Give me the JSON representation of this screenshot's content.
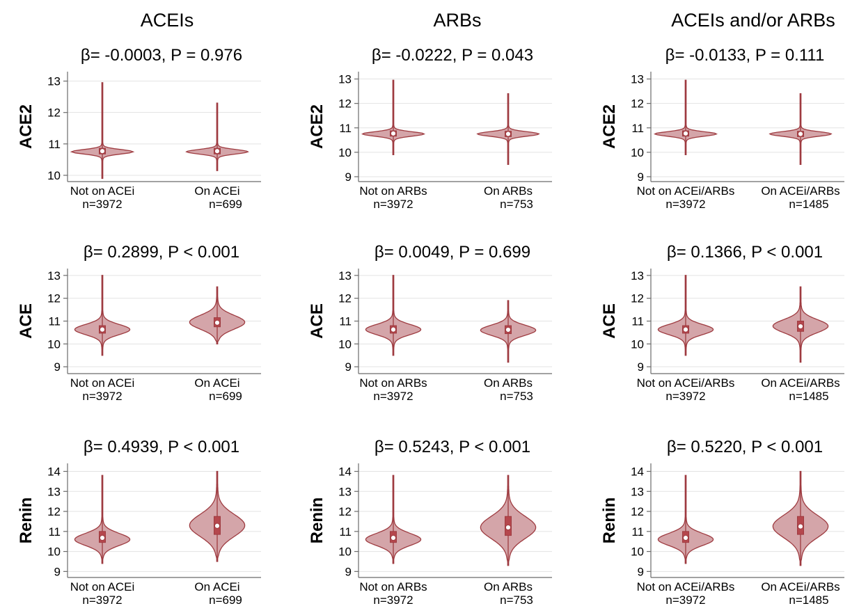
{
  "colors": {
    "fill": "#d4a5a9",
    "stroke": "#9e3b40",
    "box": "#b5474d",
    "axis": "#6b6b6b",
    "grid": "#e3e3e3",
    "text": "#000000"
  },
  "column_titles": [
    "ACEIs",
    "ARBs",
    "ACEIs and/or ARBs"
  ],
  "row_labels": [
    "ACE2",
    "ACE",
    "Renin"
  ],
  "chart_data": [
    {
      "type": "violin",
      "row": 0,
      "col": 0,
      "title": "β= -0.0003, P = 0.976",
      "ylabel": "ACE2",
      "ylim": [
        9.8,
        13.3
      ],
      "yticks": [
        10,
        11,
        12,
        13
      ],
      "groups": [
        {
          "label": "Not on ACEi",
          "n": "n=3972",
          "min": 9.9,
          "max": 12.95,
          "q1": 10.68,
          "median": 10.77,
          "q3": 10.86,
          "peak": 10.75,
          "halfwidth": 0.95,
          "spread": 0.07
        },
        {
          "label": "On ACEi",
          "n": "n=699",
          "min": 10.15,
          "max": 12.3,
          "q1": 10.68,
          "median": 10.77,
          "q3": 10.86,
          "peak": 10.75,
          "halfwidth": 0.95,
          "spread": 0.07
        }
      ]
    },
    {
      "type": "violin",
      "row": 0,
      "col": 1,
      "title": "β= -0.0222, P = 0.043",
      "ylabel": "ACE2",
      "ylim": [
        8.8,
        13.3
      ],
      "yticks": [
        9,
        10,
        11,
        12,
        13
      ],
      "groups": [
        {
          "label": "Not on ARBs",
          "n": "n=3972",
          "min": 9.9,
          "max": 12.95,
          "q1": 10.66,
          "median": 10.77,
          "q3": 10.88,
          "peak": 10.75,
          "halfwidth": 0.95,
          "spread": 0.09
        },
        {
          "label": "On ARBs",
          "n": "n=753",
          "min": 9.5,
          "max": 12.4,
          "q1": 10.64,
          "median": 10.75,
          "q3": 10.86,
          "peak": 10.75,
          "halfwidth": 0.95,
          "spread": 0.09
        }
      ]
    },
    {
      "type": "violin",
      "row": 0,
      "col": 2,
      "title": "β= -0.0133, P = 0.111",
      "ylabel": "ACE2",
      "ylim": [
        8.8,
        13.3
      ],
      "yticks": [
        9,
        10,
        11,
        12,
        13
      ],
      "groups": [
        {
          "label": "Not on ACEi/ARBs",
          "n": "n=3972",
          "min": 9.9,
          "max": 12.95,
          "q1": 10.66,
          "median": 10.77,
          "q3": 10.88,
          "peak": 10.75,
          "halfwidth": 0.95,
          "spread": 0.09
        },
        {
          "label": "On ACEi/ARBs",
          "n": "n=1485",
          "min": 9.5,
          "max": 12.4,
          "q1": 10.64,
          "median": 10.75,
          "q3": 10.86,
          "peak": 10.75,
          "halfwidth": 0.95,
          "spread": 0.09
        }
      ]
    },
    {
      "type": "violin",
      "row": 1,
      "col": 0,
      "title": "β= 0.2899, P < 0.001",
      "ylabel": "ACE",
      "ylim": [
        8.7,
        13.3
      ],
      "yticks": [
        9,
        10,
        11,
        12,
        13
      ],
      "groups": [
        {
          "label": "Not on ACEi",
          "n": "n=3972",
          "min": 9.5,
          "max": 13.0,
          "q1": 10.47,
          "median": 10.63,
          "q3": 10.8,
          "peak": 10.63,
          "halfwidth": 0.85,
          "spread": 0.22
        },
        {
          "label": "On ACEi",
          "n": "n=699",
          "min": 10.0,
          "max": 12.5,
          "q1": 10.75,
          "median": 10.93,
          "q3": 11.15,
          "peak": 10.95,
          "halfwidth": 0.85,
          "spread": 0.3
        }
      ]
    },
    {
      "type": "violin",
      "row": 1,
      "col": 1,
      "title": "β= 0.0049, P = 0.699",
      "ylabel": "ACE",
      "ylim": [
        8.7,
        13.3
      ],
      "yticks": [
        9,
        10,
        11,
        12,
        13
      ],
      "groups": [
        {
          "label": "Not on ARBs",
          "n": "n=3972",
          "min": 9.5,
          "max": 13.0,
          "q1": 10.47,
          "median": 10.63,
          "q3": 10.8,
          "peak": 10.63,
          "halfwidth": 0.85,
          "spread": 0.22
        },
        {
          "label": "On ARBs",
          "n": "n=753",
          "min": 9.2,
          "max": 11.9,
          "q1": 10.45,
          "median": 10.62,
          "q3": 10.8,
          "peak": 10.6,
          "halfwidth": 0.85,
          "spread": 0.22
        }
      ]
    },
    {
      "type": "violin",
      "row": 1,
      "col": 2,
      "title": "β= 0.1366, P < 0.001",
      "ylabel": "ACE",
      "ylim": [
        8.7,
        13.3
      ],
      "yticks": [
        9,
        10,
        11,
        12,
        13
      ],
      "groups": [
        {
          "label": "Not on ACEi/ARBs",
          "n": "n=3972",
          "min": 9.5,
          "max": 13.0,
          "q1": 10.47,
          "median": 10.63,
          "q3": 10.8,
          "peak": 10.63,
          "halfwidth": 0.85,
          "spread": 0.22
        },
        {
          "label": "On ACEi/ARBs",
          "n": "n=1485",
          "min": 9.2,
          "max": 12.5,
          "q1": 10.55,
          "median": 10.77,
          "q3": 11.0,
          "peak": 10.78,
          "halfwidth": 0.85,
          "spread": 0.28
        }
      ]
    },
    {
      "type": "violin",
      "row": 2,
      "col": 0,
      "title": "β= 0.4939, P < 0.001",
      "ylabel": "Renin",
      "ylim": [
        8.7,
        14.4
      ],
      "yticks": [
        9,
        10,
        11,
        12,
        13,
        14
      ],
      "groups": [
        {
          "label": "Not on ACEi",
          "n": "n=3972",
          "min": 9.4,
          "max": 13.8,
          "q1": 10.45,
          "median": 10.68,
          "q3": 11.0,
          "peak": 10.6,
          "halfwidth": 0.85,
          "spread": 0.3
        },
        {
          "label": "On ACEi",
          "n": "n=699",
          "min": 9.5,
          "max": 14.0,
          "q1": 10.85,
          "median": 11.28,
          "q3": 11.75,
          "peak": 11.3,
          "halfwidth": 0.85,
          "spread": 0.55
        }
      ]
    },
    {
      "type": "violin",
      "row": 2,
      "col": 1,
      "title": "β= 0.5243, P < 0.001",
      "ylabel": "Renin",
      "ylim": [
        8.7,
        14.4
      ],
      "yticks": [
        9,
        10,
        11,
        12,
        13,
        14
      ],
      "groups": [
        {
          "label": "Not on ARBs",
          "n": "n=3972",
          "min": 9.4,
          "max": 13.8,
          "q1": 10.45,
          "median": 10.68,
          "q3": 11.0,
          "peak": 10.6,
          "halfwidth": 0.85,
          "spread": 0.3
        },
        {
          "label": "On ARBs",
          "n": "n=753",
          "min": 9.3,
          "max": 13.8,
          "q1": 10.8,
          "median": 11.2,
          "q3": 11.75,
          "peak": 11.2,
          "halfwidth": 0.85,
          "spread": 0.55
        }
      ]
    },
    {
      "type": "violin",
      "row": 2,
      "col": 2,
      "title": "β= 0.5220, P < 0.001",
      "ylabel": "Renin",
      "ylim": [
        8.7,
        14.4
      ],
      "yticks": [
        9,
        10,
        11,
        12,
        13,
        14
      ],
      "groups": [
        {
          "label": "Not on ACEi/ARBs",
          "n": "n=3972",
          "min": 9.4,
          "max": 13.8,
          "q1": 10.45,
          "median": 10.68,
          "q3": 11.0,
          "peak": 10.6,
          "halfwidth": 0.85,
          "spread": 0.3
        },
        {
          "label": "On ACEi/ARBs",
          "n": "n=1485",
          "min": 9.3,
          "max": 14.0,
          "q1": 10.85,
          "median": 11.25,
          "q3": 11.75,
          "peak": 11.25,
          "halfwidth": 0.85,
          "spread": 0.55
        }
      ]
    }
  ]
}
